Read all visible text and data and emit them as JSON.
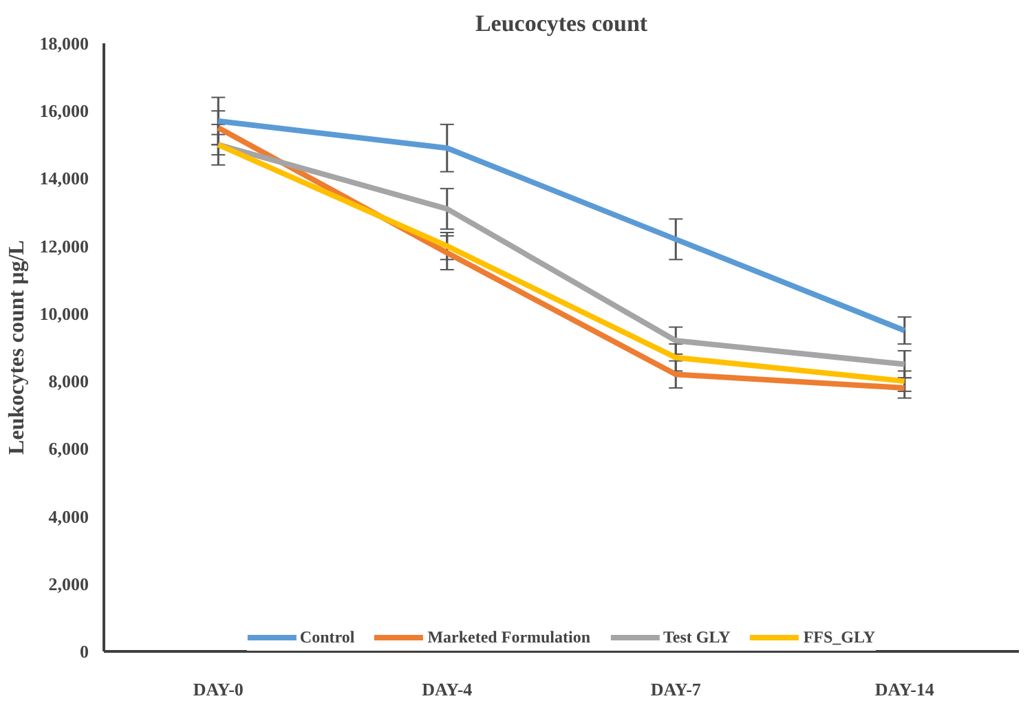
{
  "chart_data": {
    "type": "line",
    "title": "Leucocytes count",
    "ylabel": "Leukocytes count µg/L",
    "categories": [
      "DAY-0",
      "DAY-4",
      "DAY-7",
      "DAY-14"
    ],
    "ylim": [
      0,
      18000
    ],
    "yticks": [
      {
        "value": 0,
        "label": "0"
      },
      {
        "value": 2000,
        "label": "2,000"
      },
      {
        "value": 4000,
        "label": "4,000"
      },
      {
        "value": 6000,
        "label": "6,000"
      },
      {
        "value": 8000,
        "label": "8,000"
      },
      {
        "value": 10000,
        "label": "10,000"
      },
      {
        "value": 12000,
        "label": "12,000"
      },
      {
        "value": 14000,
        "label": "14,000"
      },
      {
        "value": 16000,
        "label": "16,000"
      },
      {
        "value": 18000,
        "label": "18,000"
      }
    ],
    "grid": false,
    "legend": "bottom",
    "marker": "none",
    "line_style": "solid",
    "series": [
      {
        "name": "Control",
        "color": "#5b9bd5",
        "values": [
          15700,
          14900,
          12200,
          9500
        ],
        "errors": [
          700,
          700,
          600,
          400
        ]
      },
      {
        "name": "Marketed Formulation",
        "color": "#ed7d31",
        "values": [
          15500,
          11800,
          8200,
          7800
        ],
        "errors": [
          500,
          500,
          400,
          300
        ]
      },
      {
        "name": "Test GLY",
        "color": "#a5a5a5",
        "values": [
          15000,
          13100,
          9200,
          8500
        ],
        "errors": [
          600,
          600,
          400,
          400
        ]
      },
      {
        "name": "FFS_GLY",
        "color": "#ffc000",
        "values": [
          15000,
          12000,
          8700,
          8000
        ],
        "errors": [
          300,
          400,
          400,
          300
        ]
      }
    ]
  }
}
